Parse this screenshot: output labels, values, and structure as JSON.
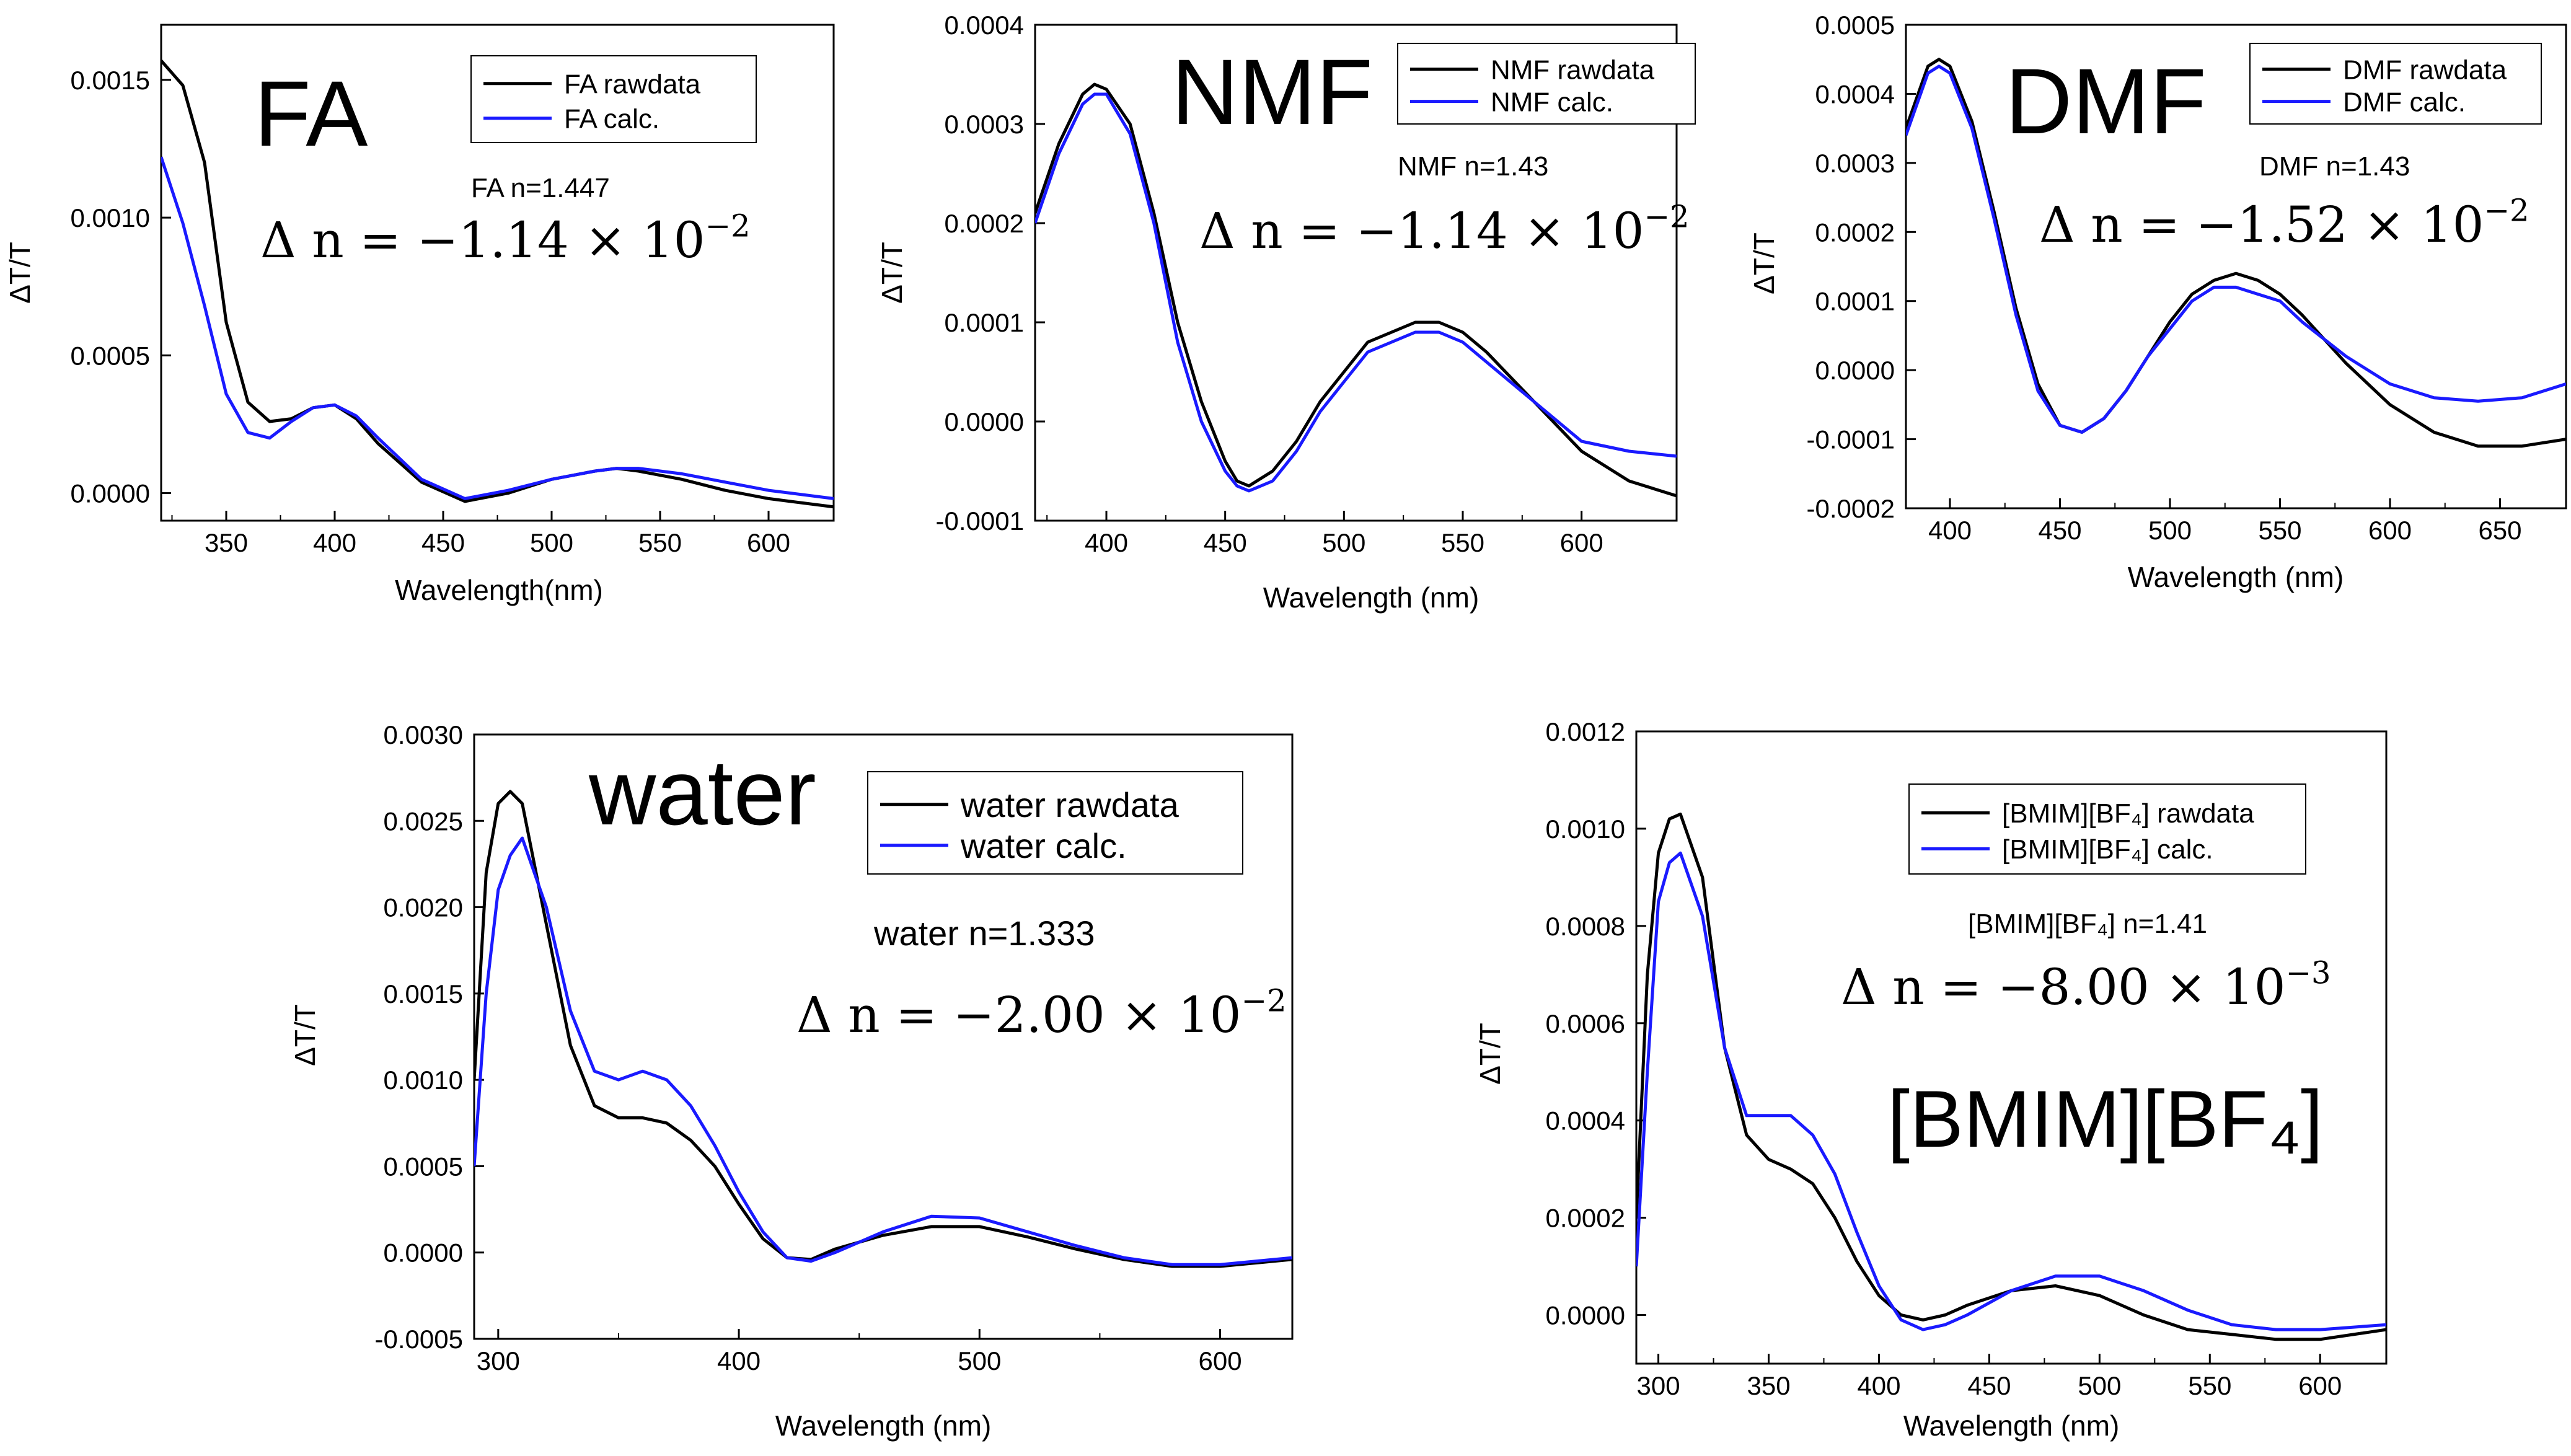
{
  "chart_data": [
    {
      "type": "line",
      "xlabel": "Wavelength(nm)",
      "ylabel": "ΔT/T",
      "xlim": [
        320,
        630
      ],
      "ylim": [
        -0.0001,
        0.0017
      ],
      "xticks": [
        350,
        400,
        450,
        500,
        550,
        600
      ],
      "yticks": [
        0.0,
        0.0005,
        0.001,
        0.0015
      ],
      "ytick_labels": [
        "0.0000",
        "0.0005",
        "0.0010",
        "0.0015"
      ],
      "big_label": "FA",
      "info_label": "FA n=1.447",
      "delta_main": "Δ n = −1.14 × 10",
      "delta_exp": "−2",
      "legend_position": "top-right",
      "series": [
        {
          "name": "FA rawdata",
          "color": "#000000",
          "x": [
            320,
            330,
            340,
            350,
            360,
            370,
            380,
            390,
            400,
            410,
            420,
            440,
            460,
            480,
            500,
            520,
            530,
            540,
            560,
            580,
            600,
            630
          ],
          "y": [
            0.00157,
            0.00148,
            0.0012,
            0.00062,
            0.00033,
            0.00026,
            0.00027,
            0.00031,
            0.00032,
            0.00027,
            0.00018,
            4e-05,
            -3e-05,
            0.0,
            5e-05,
            8e-05,
            9e-05,
            8e-05,
            5e-05,
            1e-05,
            -2e-05,
            -5e-05
          ]
        },
        {
          "name": "FA calc.",
          "color": "#1a1aff",
          "x": [
            320,
            330,
            340,
            350,
            360,
            370,
            380,
            390,
            400,
            410,
            420,
            440,
            460,
            480,
            500,
            520,
            530,
            540,
            560,
            580,
            600,
            630
          ],
          "y": [
            0.00122,
            0.00098,
            0.00068,
            0.00036,
            0.00022,
            0.0002,
            0.00026,
            0.00031,
            0.00032,
            0.00028,
            0.0002,
            5e-05,
            -2e-05,
            1e-05,
            5e-05,
            8e-05,
            9e-05,
            9e-05,
            7e-05,
            4e-05,
            1e-05,
            -2e-05
          ]
        }
      ]
    },
    {
      "type": "line",
      "xlabel": "Wavelength (nm)",
      "ylabel": "ΔT/T",
      "xlim": [
        370,
        640
      ],
      "ylim": [
        -0.0001,
        0.0004
      ],
      "xticks": [
        400,
        450,
        500,
        550,
        600
      ],
      "yticks": [
        -0.0001,
        0.0,
        0.0001,
        0.0002,
        0.0003,
        0.0004
      ],
      "ytick_labels": [
        "-0.0001",
        "0.0000",
        "0.0001",
        "0.0002",
        "0.0003",
        "0.0004"
      ],
      "big_label": "NMF",
      "info_label": "NMF n=1.43",
      "delta_main": "Δ n = −1.14 × 10",
      "delta_exp": "−2",
      "legend_position": "top-right",
      "series": [
        {
          "name": "NMF rawdata",
          "color": "#000000",
          "x": [
            370,
            380,
            390,
            395,
            400,
            410,
            420,
            430,
            440,
            450,
            455,
            460,
            470,
            480,
            490,
            500,
            510,
            520,
            530,
            540,
            550,
            560,
            580,
            600,
            620,
            640
          ],
          "y": [
            0.00021,
            0.00028,
            0.00033,
            0.00034,
            0.000335,
            0.0003,
            0.00021,
            0.0001,
            2e-05,
            -4e-05,
            -6e-05,
            -6.5e-05,
            -5e-05,
            -2e-05,
            2e-05,
            5e-05,
            8e-05,
            9e-05,
            0.0001,
            0.0001,
            9e-05,
            7e-05,
            2e-05,
            -3e-05,
            -6e-05,
            -7.5e-05
          ]
        },
        {
          "name": "NMF calc.",
          "color": "#1a1aff",
          "x": [
            370,
            380,
            390,
            395,
            400,
            410,
            420,
            430,
            440,
            450,
            455,
            460,
            470,
            480,
            490,
            500,
            510,
            520,
            530,
            540,
            550,
            560,
            580,
            600,
            620,
            640
          ],
          "y": [
            0.0002,
            0.00027,
            0.00032,
            0.00033,
            0.00033,
            0.00029,
            0.0002,
            8e-05,
            0.0,
            -5e-05,
            -6.5e-05,
            -7e-05,
            -6e-05,
            -3e-05,
            1e-05,
            4e-05,
            7e-05,
            8e-05,
            9e-05,
            9e-05,
            8e-05,
            6e-05,
            2e-05,
            -2e-05,
            -3e-05,
            -3.5e-05
          ]
        }
      ]
    },
    {
      "type": "line",
      "xlabel": "Wavelength (nm)",
      "ylabel": "ΔT/T",
      "xlim": [
        380,
        680
      ],
      "ylim": [
        -0.0002,
        0.0005
      ],
      "xticks": [
        400,
        450,
        500,
        550,
        600,
        650
      ],
      "yticks": [
        -0.0002,
        -0.0001,
        0.0,
        0.0001,
        0.0002,
        0.0003,
        0.0004,
        0.0005
      ],
      "ytick_labels": [
        "-0.0002",
        "-0.0001",
        "0.0000",
        "0.0001",
        "0.0002",
        "0.0003",
        "0.0004",
        "0.0005"
      ],
      "big_label": "DMF",
      "info_label": "DMF n=1.43",
      "delta_main": "Δ n = −1.52 × 10",
      "delta_exp": "−2",
      "legend_position": "top-right",
      "series": [
        {
          "name": "DMF rawdata",
          "color": "#000000",
          "x": [
            380,
            390,
            395,
            400,
            410,
            420,
            430,
            440,
            450,
            460,
            470,
            480,
            490,
            500,
            510,
            520,
            530,
            540,
            550,
            560,
            580,
            600,
            620,
            640,
            660,
            680
          ],
          "y": [
            0.00035,
            0.00044,
            0.00045,
            0.00044,
            0.00036,
            0.00023,
            9e-05,
            -2e-05,
            -8e-05,
            -9e-05,
            -7e-05,
            -3e-05,
            2e-05,
            7e-05,
            0.00011,
            0.00013,
            0.00014,
            0.00013,
            0.00011,
            8e-05,
            1e-05,
            -5e-05,
            -9e-05,
            -0.00011,
            -0.00011,
            -0.0001
          ]
        },
        {
          "name": "DMF calc.",
          "color": "#1a1aff",
          "x": [
            380,
            390,
            395,
            400,
            410,
            420,
            430,
            440,
            450,
            460,
            470,
            480,
            490,
            500,
            510,
            520,
            530,
            540,
            550,
            560,
            580,
            600,
            620,
            640,
            660,
            680
          ],
          "y": [
            0.00034,
            0.00043,
            0.00044,
            0.00043,
            0.00035,
            0.00022,
            8e-05,
            -3e-05,
            -8e-05,
            -9e-05,
            -7e-05,
            -3e-05,
            2e-05,
            6e-05,
            0.0001,
            0.00012,
            0.00012,
            0.00011,
            0.0001,
            7e-05,
            2e-05,
            -2e-05,
            -4e-05,
            -4.5e-05,
            -4e-05,
            -2e-05
          ]
        }
      ]
    },
    {
      "type": "line",
      "xlabel": "Wavelength (nm)",
      "ylabel": "ΔT/T",
      "xlim": [
        290,
        630
      ],
      "ylim": [
        -0.0005,
        0.003
      ],
      "xticks": [
        300,
        400,
        500,
        600
      ],
      "yticks": [
        -0.0005,
        0.0,
        0.0005,
        0.001,
        0.0015,
        0.002,
        0.0025,
        0.003
      ],
      "ytick_labels": [
        "-0.0005",
        "0.0000",
        "0.0005",
        "0.0010",
        "0.0015",
        "0.0020",
        "0.0025",
        "0.0030"
      ],
      "big_label": "water",
      "info_label": "water n=1.333",
      "delta_main": "Δ n = −2.00 × 10",
      "delta_exp": "−2",
      "legend_position": "top-right",
      "series": [
        {
          "name": "water rawdata",
          "color": "#000000",
          "x": [
            290,
            295,
            300,
            305,
            310,
            320,
            330,
            340,
            350,
            360,
            370,
            380,
            390,
            400,
            410,
            420,
            430,
            440,
            460,
            480,
            500,
            520,
            540,
            560,
            580,
            600,
            630
          ],
          "y": [
            0.001,
            0.0022,
            0.0026,
            0.00267,
            0.0026,
            0.0019,
            0.0012,
            0.00085,
            0.00078,
            0.00078,
            0.00075,
            0.00065,
            0.0005,
            0.00028,
            8e-05,
            -3e-05,
            -4e-05,
            2e-05,
            0.0001,
            0.00015,
            0.00015,
            9e-05,
            2e-05,
            -4e-05,
            -8e-05,
            -8e-05,
            -4e-05
          ]
        },
        {
          "name": "water calc.",
          "color": "#1a1aff",
          "x": [
            290,
            295,
            300,
            305,
            310,
            320,
            330,
            340,
            350,
            360,
            370,
            380,
            390,
            400,
            410,
            420,
            430,
            440,
            460,
            480,
            500,
            520,
            540,
            560,
            580,
            600,
            630
          ],
          "y": [
            0.0005,
            0.0015,
            0.0021,
            0.0023,
            0.0024,
            0.002,
            0.0014,
            0.00105,
            0.001,
            0.00105,
            0.001,
            0.00085,
            0.00062,
            0.00035,
            0.00012,
            -3e-05,
            -5e-05,
            0.0,
            0.00012,
            0.00021,
            0.0002,
            0.00012,
            4e-05,
            -3e-05,
            -7e-05,
            -7e-05,
            -3e-05
          ]
        }
      ]
    },
    {
      "type": "line",
      "xlabel": "Wavelength (nm)",
      "ylabel": "ΔT/T",
      "xlim": [
        290,
        630
      ],
      "ylim": [
        -0.0001,
        0.0012
      ],
      "xticks": [
        300,
        350,
        400,
        450,
        500,
        550,
        600
      ],
      "yticks": [
        0.0,
        0.0002,
        0.0004,
        0.0006,
        0.0008,
        0.001,
        0.0012
      ],
      "ytick_labels": [
        "0.0000",
        "0.0002",
        "0.0004",
        "0.0006",
        "0.0008",
        "0.0010",
        "0.0012"
      ],
      "big_label": "[BMIM][BF₄]",
      "info_label": "[BMIM][BF₄]  n=1.41",
      "delta_main": "Δ n = −8.00 × 10",
      "delta_exp": "−3",
      "legend_position": "top-right",
      "series": [
        {
          "name": "[BMIM][BF₄] rawdata",
          "color": "#000000",
          "x": [
            290,
            295,
            300,
            305,
            310,
            320,
            330,
            340,
            350,
            360,
            370,
            380,
            390,
            400,
            410,
            420,
            430,
            440,
            460,
            480,
            500,
            520,
            540,
            560,
            580,
            600,
            630
          ],
          "y": [
            0.0002,
            0.0007,
            0.00095,
            0.00102,
            0.00103,
            0.0009,
            0.00055,
            0.00037,
            0.00032,
            0.0003,
            0.00027,
            0.0002,
            0.00011,
            4e-05,
            0.0,
            -1e-05,
            0.0,
            2e-05,
            5e-05,
            6e-05,
            4e-05,
            0.0,
            -3e-05,
            -4e-05,
            -5e-05,
            -5e-05,
            -3e-05
          ]
        },
        {
          "name": "[BMIM][BF₄] calc.",
          "color": "#1a1aff",
          "x": [
            290,
            295,
            300,
            305,
            310,
            320,
            330,
            340,
            350,
            360,
            370,
            380,
            390,
            400,
            410,
            420,
            430,
            440,
            460,
            480,
            500,
            520,
            540,
            560,
            580,
            600,
            630
          ],
          "y": [
            0.0001,
            0.0005,
            0.00085,
            0.00093,
            0.00095,
            0.00082,
            0.00055,
            0.00041,
            0.00041,
            0.00041,
            0.00037,
            0.00029,
            0.00017,
            6e-05,
            -1e-05,
            -3e-05,
            -2e-05,
            0.0,
            5e-05,
            8e-05,
            8e-05,
            5e-05,
            1e-05,
            -2e-05,
            -3e-05,
            -3e-05,
            -2e-05
          ]
        }
      ]
    }
  ]
}
